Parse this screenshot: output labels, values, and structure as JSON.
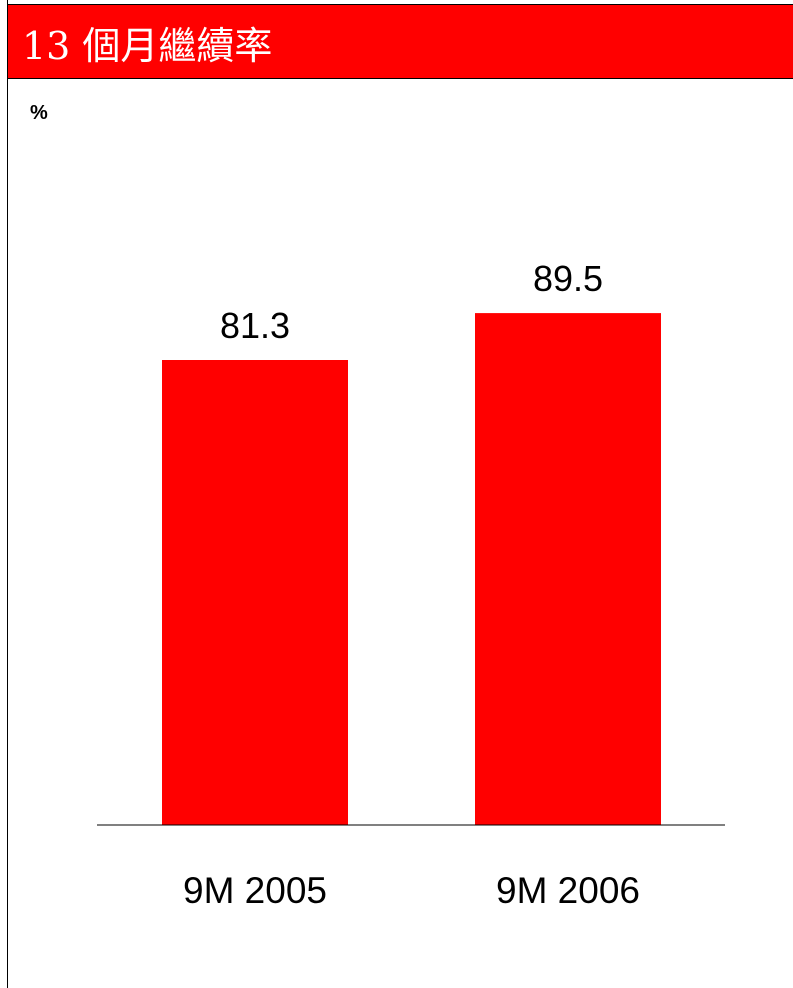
{
  "header": {
    "title": "13 個月繼續率"
  },
  "chart_data": {
    "type": "bar",
    "title": "13 個月繼續率",
    "unit_label": "%",
    "categories": [
      "9M 2005",
      "9M 2006"
    ],
    "values": [
      81.3,
      89.5
    ],
    "data_labels": [
      "81.3",
      "89.5"
    ],
    "ylim": [
      0,
      100
    ],
    "grid": false,
    "bar_color": "#ff0000",
    "title_bar_color": "#ff0000"
  }
}
